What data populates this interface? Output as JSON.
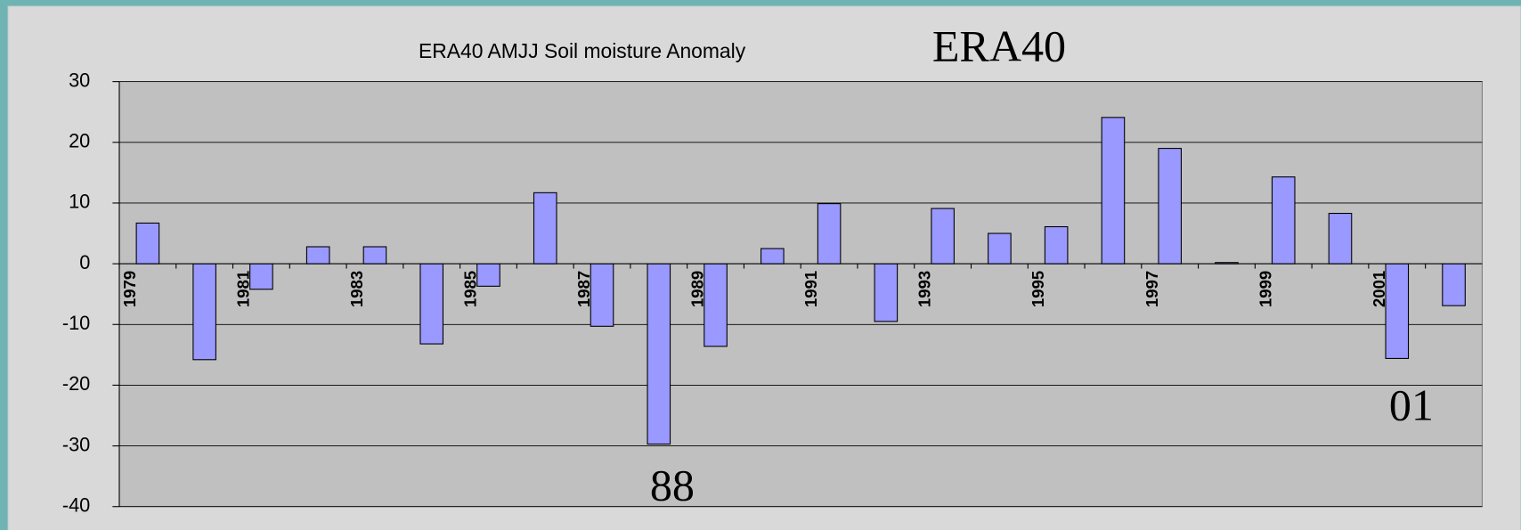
{
  "chart_data": {
    "type": "bar",
    "title": "ERA40 AMJJ Soil moisture Anomaly",
    "annotations": [
      "ERA40",
      "88",
      "01"
    ],
    "categories": [
      "1979",
      null,
      "1981",
      null,
      "1983",
      null,
      "1985",
      null,
      "1987",
      null,
      "1989",
      null,
      "1991",
      null,
      "1993",
      null,
      "1995",
      null,
      "1997",
      null,
      "1999",
      null,
      "2001",
      null
    ],
    "values": [
      6.7,
      -15.8,
      -4.2,
      2.8,
      2.8,
      -13.2,
      -3.7,
      11.7,
      -10.3,
      -29.7,
      -13.6,
      2.5,
      9.9,
      -9.5,
      9.1,
      5.0,
      6.1,
      24.1,
      19.0,
      0.2,
      14.3,
      8.3,
      -15.6,
      -6.9
    ],
    "color": "#9999ff",
    "ylim": [
      -40,
      30
    ],
    "yticks": [
      -40,
      -30,
      -20,
      -10,
      0,
      10,
      20,
      30
    ],
    "grid": true
  }
}
